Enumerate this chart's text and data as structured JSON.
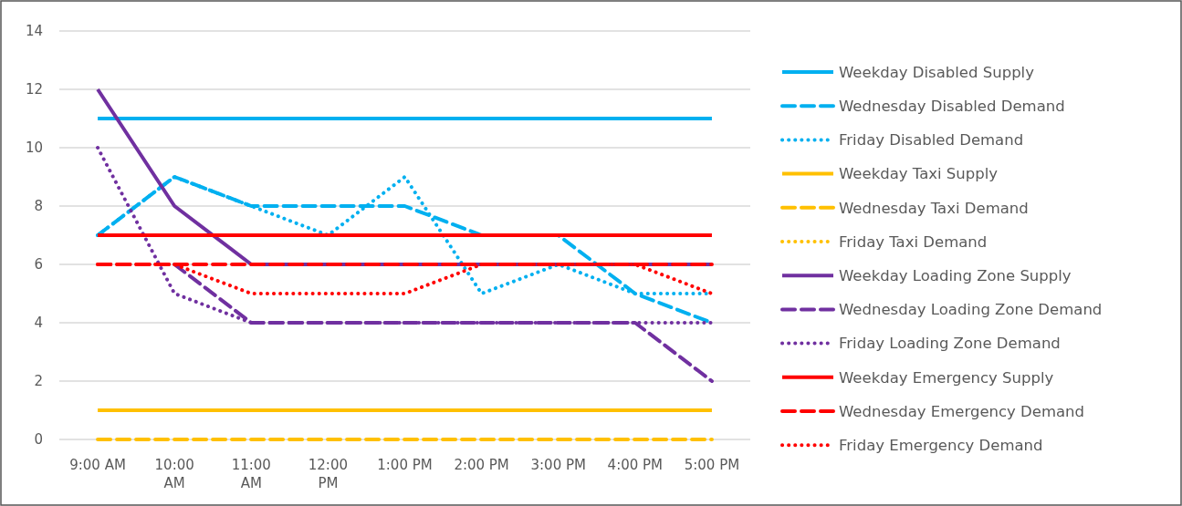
{
  "chart_data": {
    "type": "line",
    "categories": [
      "9:00 AM",
      "10:00 AM",
      "11:00 AM",
      "12:00 PM",
      "1:00 PM",
      "2:00 PM",
      "3:00 PM",
      "4:00 PM",
      "5:00 PM"
    ],
    "ylim": [
      0,
      14
    ],
    "yticks": [
      0,
      2,
      4,
      6,
      8,
      10,
      12,
      14
    ],
    "grid": "y",
    "legend": "right",
    "series": [
      {
        "name": "Weekday Disabled Supply",
        "color": "#00b0f0",
        "line_style": "solid",
        "values": [
          11,
          11,
          11,
          11,
          11,
          11,
          11,
          11,
          11
        ]
      },
      {
        "name": "Wednesday Disabled Demand",
        "color": "#00b0f0",
        "line_style": "dashed",
        "values": [
          7,
          9,
          8,
          8,
          8,
          7,
          7,
          5,
          4
        ]
      },
      {
        "name": "Friday Disabled Demand",
        "color": "#00b0f0",
        "line_style": "dotted",
        "values": [
          7,
          9,
          8,
          7,
          9,
          5,
          6,
          5,
          5
        ]
      },
      {
        "name": "Weekday Taxi Supply",
        "color": "#ffc000",
        "line_style": "solid",
        "values": [
          1,
          1,
          1,
          1,
          1,
          1,
          1,
          1,
          1
        ]
      },
      {
        "name": "Wednesday Taxi Demand",
        "color": "#ffc000",
        "line_style": "dashed",
        "values": [
          0,
          0,
          0,
          0,
          0,
          0,
          0,
          0,
          0
        ]
      },
      {
        "name": "Friday Taxi Demand",
        "color": "#ffc000",
        "line_style": "dotted",
        "values": [
          null,
          null,
          null,
          null,
          null,
          null,
          null,
          null,
          null
        ]
      },
      {
        "name": "Weekday Loading Zone Supply",
        "color": "#7030a0",
        "line_style": "solid",
        "values": [
          12,
          8,
          6,
          6,
          6,
          6,
          6,
          6,
          6
        ]
      },
      {
        "name": "Wednesday Loading Zone Demand",
        "color": "#7030a0",
        "line_style": "dashed",
        "values": [
          null,
          6,
          4,
          4,
          4,
          4,
          4,
          4,
          2
        ]
      },
      {
        "name": "Friday Loading Zone Demand",
        "color": "#7030a0",
        "line_style": "dotted",
        "values": [
          10,
          5,
          4,
          4,
          4,
          4,
          4,
          4,
          4
        ]
      },
      {
        "name": "Weekday Emergency Supply",
        "color": "#ff0000",
        "line_style": "solid",
        "values": [
          7,
          7,
          7,
          7,
          7,
          7,
          7,
          7,
          7
        ]
      },
      {
        "name": "Wednesday Emergency Demand",
        "color": "#ff0000",
        "line_style": "dashed",
        "values": [
          6,
          6,
          6,
          6,
          6,
          6,
          6,
          6,
          6
        ]
      },
      {
        "name": "Friday Emergency Demand",
        "color": "#ff0000",
        "line_style": "dotted",
        "values": [
          6,
          6,
          5,
          5,
          5,
          6,
          6,
          6,
          5
        ]
      }
    ]
  }
}
